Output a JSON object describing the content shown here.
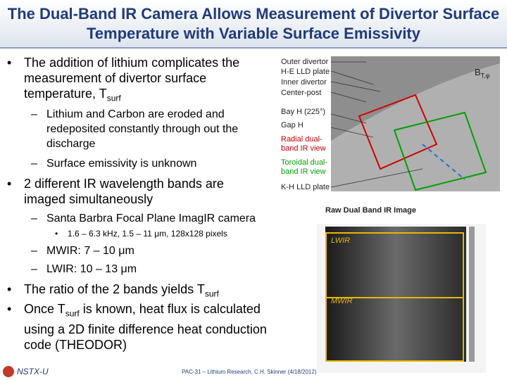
{
  "title": "The Dual-Band IR Camera Allows Measurement of Divertor Surface Temperature with Variable Surface Emissivity",
  "bullets": [
    {
      "text": "The addition of lithium complicates the measurement of divertor surface temperature, T",
      "sub": "surf",
      "children": [
        "Lithium and Carbon are eroded and redeposited constantly through out the discharge",
        "Surface emissivity is unknown"
      ]
    },
    {
      "text": "2 different IR wavelength bands are imaged simultaneously",
      "children": [
        {
          "text": "Santa Barbra Focal Plane ImagIR camera",
          "children": [
            "1.6 – 6.3 kHz, 1.5 – 11 μm, 128x128 pixels"
          ]
        },
        {
          "text": "MWIR: 7 – 10 μm"
        },
        {
          "text": "LWIR: 10 – 13 μm"
        }
      ]
    },
    {
      "text": "The ratio of the 2 bands yields T",
      "sub": "surf"
    },
    {
      "before": "Once T",
      "sub": "surf",
      "after": "is known, heat flux is calculated using a 2D finite difference heat conduction code (THEODOR)"
    }
  ],
  "figure_top": {
    "labels": [
      "Outer divertor",
      "H-E LLD plate",
      "Inner divertor",
      "Center-post",
      "Bay H (225°)",
      "Gap H",
      "Radial dual-band IR view",
      "Toroidal dual-band IR view",
      "K-H LLD plate"
    ],
    "field": "B",
    "field_sub": "T,φ"
  },
  "figure_ir": {
    "caption": "Raw Dual Band IR Image",
    "bands": [
      "LWIR",
      "MWIR"
    ]
  },
  "footer": {
    "logo": "NSTX-U",
    "text": "PAC-31 – Lithium Research, C.H. Skinner (4/18/2012)"
  }
}
